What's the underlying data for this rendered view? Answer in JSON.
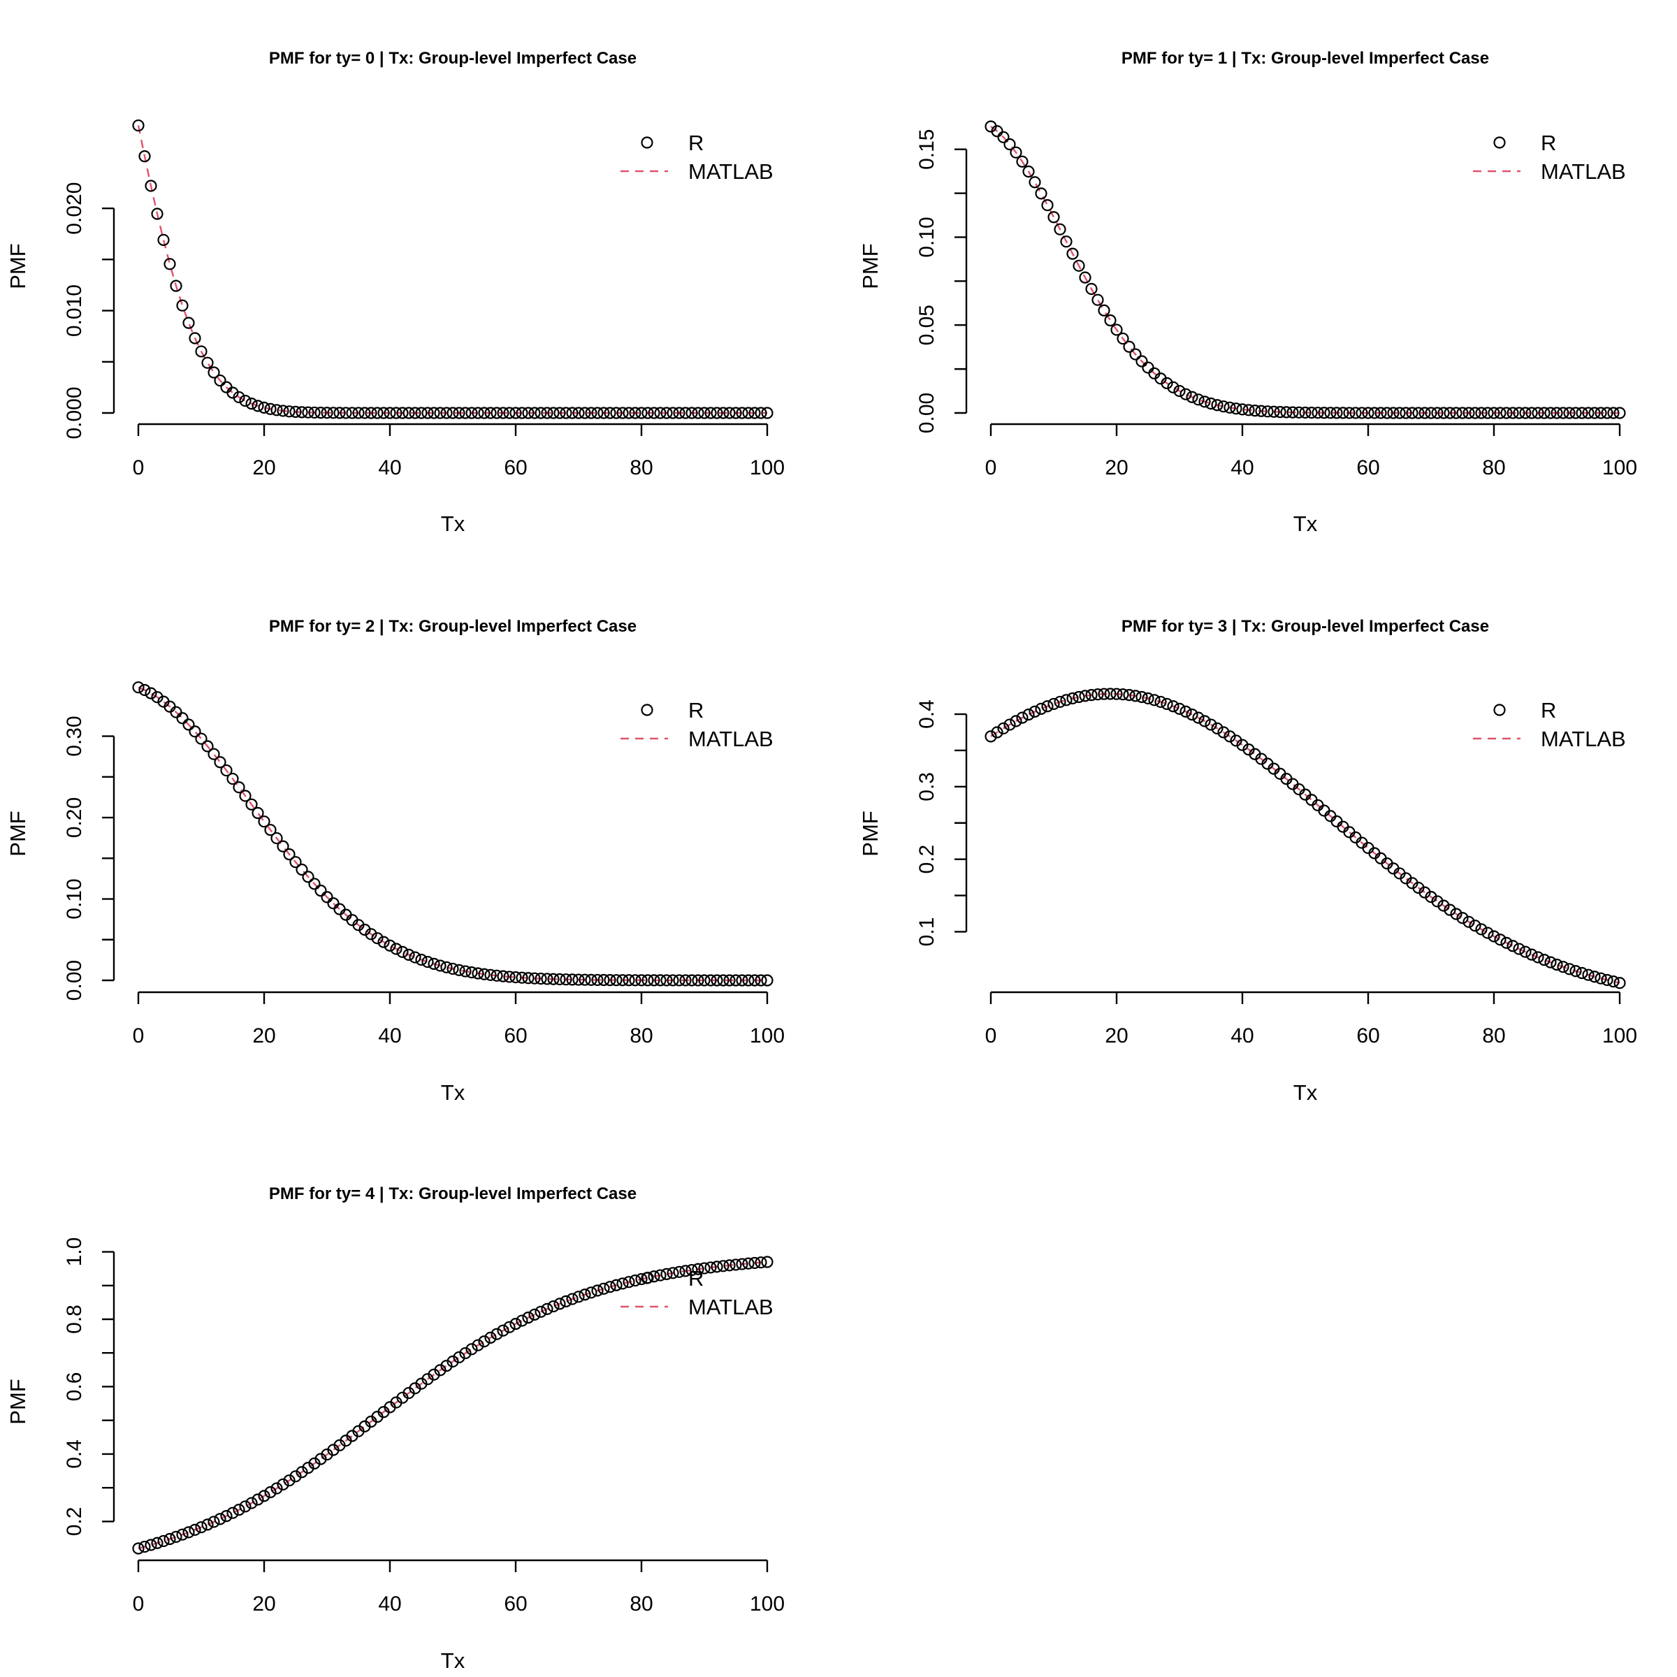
{
  "chart_data": [
    {
      "type": "scatter",
      "title": "PMF for ty= 0  | Tx: Group-level Imperfect Case",
      "xlabel": "Tx",
      "ylabel": "PMF",
      "x_ticks": [
        "0",
        "20",
        "40",
        "60",
        "80",
        "100"
      ],
      "y_ticks": [
        "0.000",
        "0.010",
        "0.020"
      ],
      "xlim": [
        0,
        100
      ],
      "ylim": [
        0,
        0.028
      ],
      "legend": {
        "placement": "top-right",
        "entries": [
          "R",
          "MATLAB"
        ]
      },
      "grid": false,
      "curve": {
        "form": "bell",
        "x0": 0,
        "y0": 0.0281,
        "ymax": 0.0281,
        "mu": -12,
        "sigma": 10.5,
        "ymin": 0
      },
      "series": [
        {
          "name": "R",
          "mark": "open-circle",
          "color": "#000000",
          "x_range": [
            0,
            100
          ],
          "step": 1
        },
        {
          "name": "MATLAB",
          "mark": "dashed-line",
          "color": "#df536b",
          "x_range": [
            0,
            100
          ],
          "step": 1
        }
      ]
    },
    {
      "type": "scatter",
      "title": "PMF for ty= 1  | Tx: Group-level Imperfect Case",
      "xlabel": "Tx",
      "ylabel": "PMF",
      "x_ticks": [
        "0",
        "20",
        "40",
        "60",
        "80",
        "100"
      ],
      "y_ticks": [
        "0.00",
        "0.05",
        "0.10",
        "0.15"
      ],
      "xlim": [
        0,
        100
      ],
      "ylim": [
        0,
        0.163
      ],
      "legend": {
        "placement": "top-right",
        "entries": [
          "R",
          "MATLAB"
        ]
      },
      "grid": false,
      "curve": {
        "form": "bell",
        "x0": 0,
        "y0": 0.163,
        "ymax": 0.163,
        "mu": -3,
        "sigma": 14.5,
        "ymin": 0
      },
      "series": [
        {
          "name": "R",
          "mark": "open-circle",
          "color": "#000000",
          "x_range": [
            0,
            100
          ],
          "step": 1
        },
        {
          "name": "MATLAB",
          "mark": "dashed-line",
          "color": "#df536b",
          "x_range": [
            0,
            100
          ],
          "step": 1
        }
      ]
    },
    {
      "type": "scatter",
      "title": "PMF for ty= 2  | Tx: Group-level Imperfect Case",
      "xlabel": "Tx",
      "ylabel": "PMF",
      "x_ticks": [
        "0",
        "20",
        "40",
        "60",
        "80",
        "100"
      ],
      "y_ticks": [
        "0.00",
        "0.10",
        "0.20",
        "0.30"
      ],
      "xlim": [
        0,
        100
      ],
      "ylim": [
        0,
        0.352
      ],
      "legend": {
        "placement": "top-right",
        "entries": [
          "R",
          "MATLAB"
        ]
      },
      "grid": false,
      "curve": {
        "form": "bell",
        "x0": 0,
        "y0": 0.352,
        "ymax": 0.36,
        "mu": -3.5,
        "sigma": 21,
        "ymin": 0
      },
      "series": [
        {
          "name": "R",
          "mark": "open-circle",
          "color": "#000000",
          "x_range": [
            0,
            100
          ],
          "step": 1
        },
        {
          "name": "MATLAB",
          "mark": "dashed-line",
          "color": "#df536b",
          "x_range": [
            0,
            100
          ],
          "step": 1
        }
      ]
    },
    {
      "type": "scatter",
      "title": "PMF for ty= 3  | Tx: Group-level Imperfect Case",
      "xlabel": "Tx",
      "ylabel": "PMF",
      "x_ticks": [
        "0",
        "20",
        "40",
        "60",
        "80",
        "100"
      ],
      "y_ticks": [
        "0.1",
        "0.2",
        "0.3",
        "0.4"
      ],
      "xlim": [
        0,
        100
      ],
      "ylim": [
        0.033,
        0.428
      ],
      "legend": {
        "placement": "top-right",
        "entries": [
          "R",
          "MATLAB"
        ]
      },
      "grid": false,
      "curve": {
        "form": "bell",
        "x0": 0,
        "y0": 0.338,
        "ymax": 0.428,
        "mu": 19,
        "sigma": 35,
        "ymin": 0
      },
      "series": [
        {
          "name": "R",
          "mark": "open-circle",
          "color": "#000000",
          "x_range": [
            0,
            100
          ],
          "step": 1
        },
        {
          "name": "MATLAB",
          "mark": "dashed-line",
          "color": "#df536b",
          "x_range": [
            0,
            100
          ],
          "step": 1
        }
      ]
    },
    {
      "type": "scatter",
      "title": "PMF for ty= 4  | Tx: Group-level Imperfect Case",
      "xlabel": "Tx",
      "ylabel": "PMF",
      "x_ticks": [
        "0",
        "20",
        "40",
        "60",
        "80",
        "100"
      ],
      "y_ticks": [
        "0.2",
        "0.4",
        "0.6",
        "0.8",
        "1.0"
      ],
      "xlim": [
        0,
        100
      ],
      "ylim": [
        0.12,
        0.97
      ],
      "legend": {
        "placement": "top-right",
        "entries": [
          "R",
          "MATLAB"
        ]
      },
      "grid": false,
      "curve": {
        "form": "logistic",
        "x0": 0,
        "y0": 0.12,
        "ymin": 0.12,
        "ymax": 0.97,
        "mid": 38,
        "scale": 17
      },
      "series": [
        {
          "name": "R",
          "mark": "open-circle",
          "color": "#000000",
          "x_range": [
            0,
            100
          ],
          "step": 1
        },
        {
          "name": "MATLAB",
          "mark": "dashed-line",
          "color": "#df536b",
          "x_range": [
            0,
            100
          ],
          "step": 1
        }
      ]
    }
  ]
}
